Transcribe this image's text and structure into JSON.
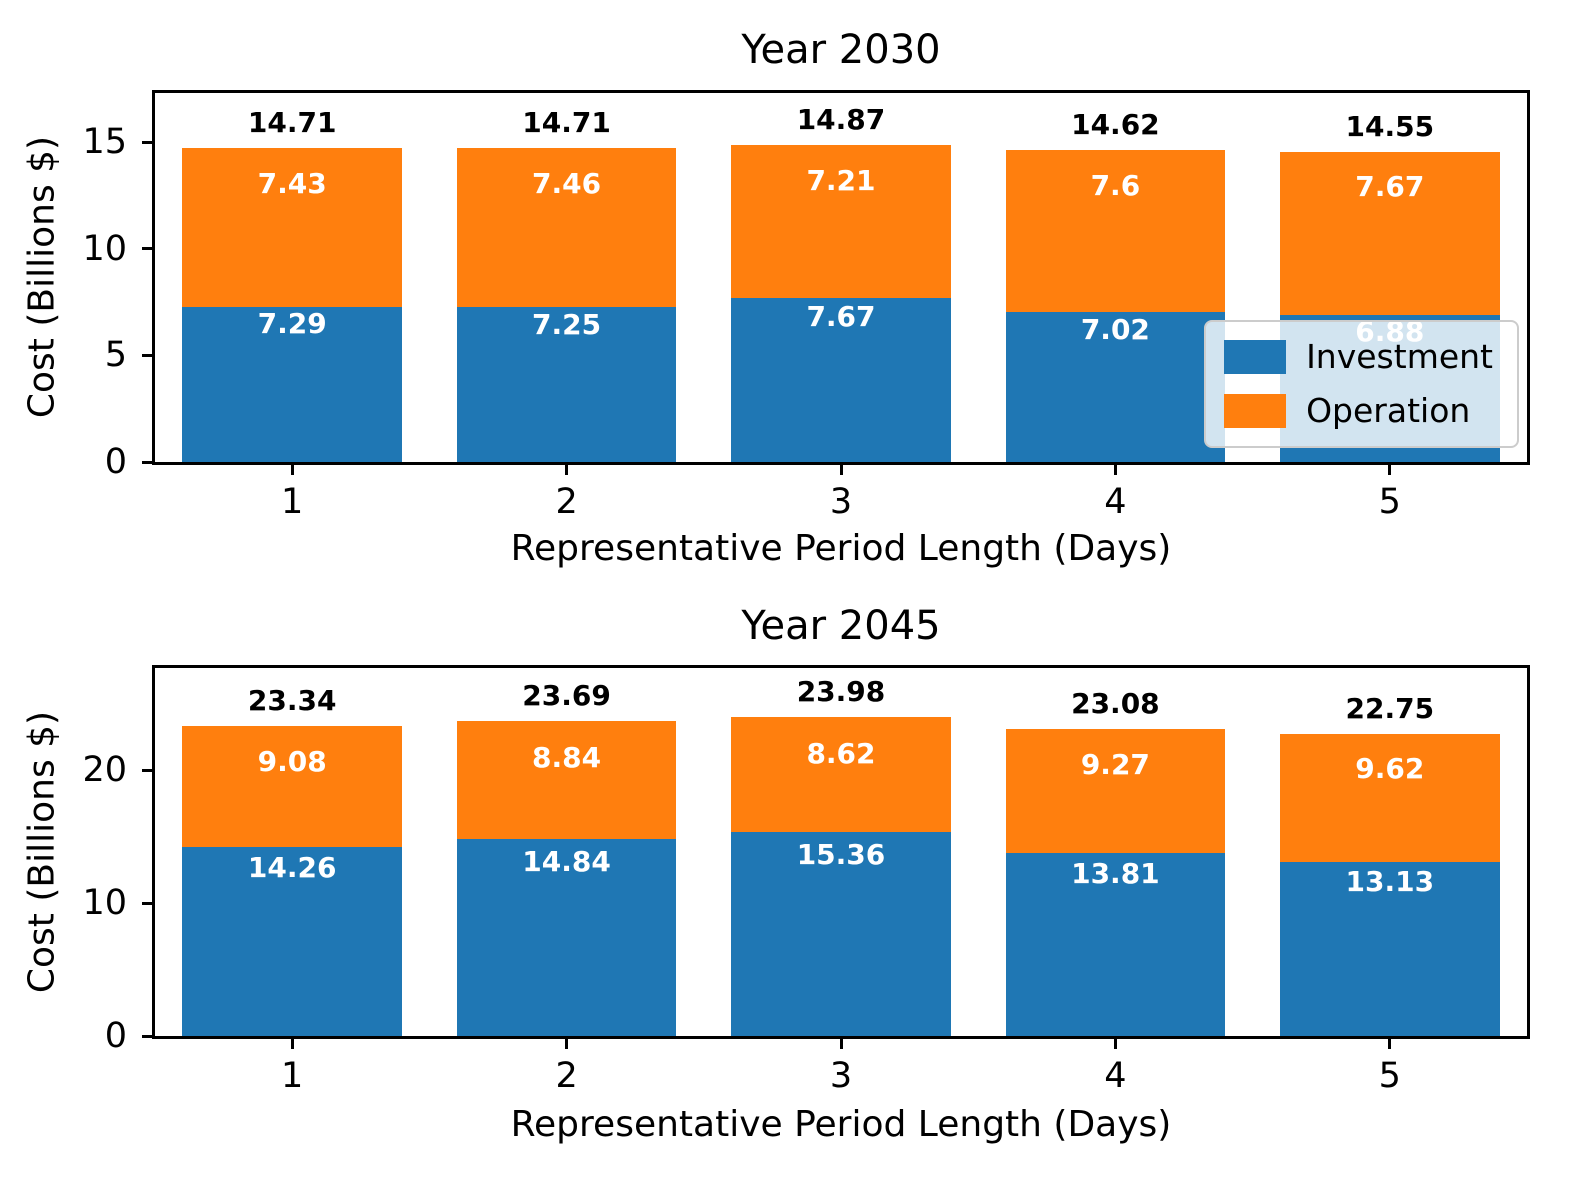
{
  "figure": {
    "background": "#ffffff",
    "legend": {
      "location": "lower right",
      "items": [
        {
          "label": "Investment",
          "color": "#1f77b4"
        },
        {
          "label": "Operation",
          "color": "#ff7f0e"
        }
      ]
    }
  },
  "chart_data": [
    {
      "type": "bar",
      "stacked": true,
      "title": "Year 2030",
      "xlabel": "Representative Period Length (Days)",
      "ylabel": "Cost (Billions $)",
      "categories": [
        "1",
        "2",
        "3",
        "4",
        "5"
      ],
      "series": [
        {
          "name": "Investment",
          "color": "#1f77b4",
          "values": [
            7.29,
            7.25,
            7.67,
            7.02,
            6.88
          ],
          "value_labels": [
            "7.29",
            "7.25",
            "7.67",
            "7.02",
            "6.88"
          ]
        },
        {
          "name": "Operation",
          "color": "#ff7f0e",
          "values": [
            7.43,
            7.46,
            7.21,
            7.6,
            7.67
          ],
          "value_labels": [
            "7.43",
            "7.46",
            "7.21",
            "7.6",
            "7.67"
          ]
        }
      ],
      "totals": [
        "14.71",
        "14.71",
        "14.87",
        "14.62",
        "14.55"
      ],
      "yticks": [
        0,
        5,
        10,
        15
      ],
      "ylim": [
        0,
        17.3
      ],
      "grid": false,
      "legend": true
    },
    {
      "type": "bar",
      "stacked": true,
      "title": "Year 2045",
      "xlabel": "Representative Period Length (Days)",
      "ylabel": "Cost (Billions $)",
      "categories": [
        "1",
        "2",
        "3",
        "4",
        "5"
      ],
      "series": [
        {
          "name": "Investment",
          "color": "#1f77b4",
          "values": [
            14.26,
            14.84,
            15.36,
            13.81,
            13.13
          ],
          "value_labels": [
            "14.26",
            "14.84",
            "15.36",
            "13.81",
            "13.13"
          ]
        },
        {
          "name": "Operation",
          "color": "#ff7f0e",
          "values": [
            9.08,
            8.84,
            8.62,
            9.27,
            9.62
          ],
          "value_labels": [
            "9.08",
            "8.84",
            "8.62",
            "9.27",
            "9.62"
          ]
        }
      ],
      "totals": [
        "23.34",
        "23.69",
        "23.98",
        "23.08",
        "22.75"
      ],
      "yticks": [
        0,
        10,
        20
      ],
      "ylim": [
        0,
        27.7
      ],
      "grid": false,
      "legend": false
    }
  ]
}
